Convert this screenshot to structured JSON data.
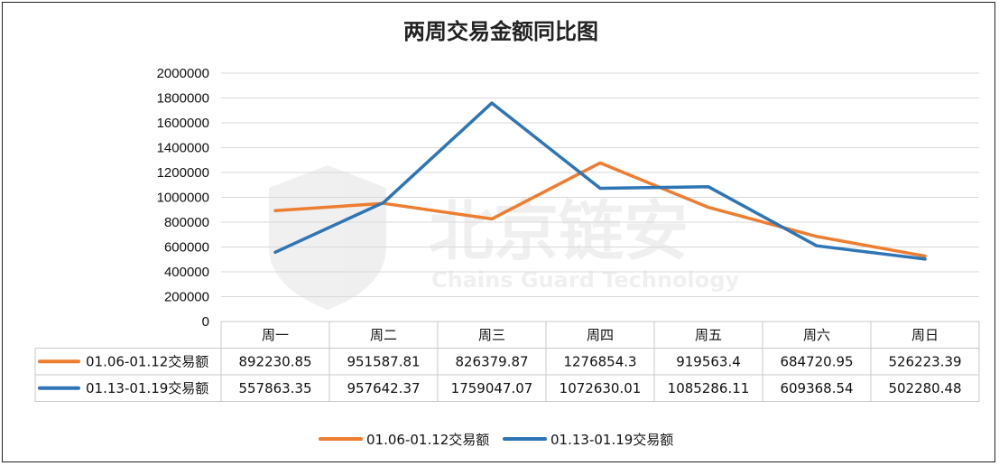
{
  "chart_data": {
    "type": "line",
    "title": "两周交易金额同比图",
    "categories": [
      "周一",
      "周二",
      "周三",
      "周四",
      "周五",
      "周六",
      "周日"
    ],
    "series": [
      {
        "name": "01.06-01.12交易额",
        "color": "#ED7D31",
        "values": [
          892230.85,
          951587.81,
          826379.87,
          1276854.3,
          919563.4,
          684720.95,
          526223.39
        ],
        "labels": [
          "892230.85",
          "951587.81",
          "826379.87",
          "1276854.3",
          "919563.4",
          "684720.95",
          "526223.39"
        ]
      },
      {
        "name": "01.13-01.19交易额",
        "color": "#2E75B6",
        "values": [
          557863.35,
          957642.37,
          1759047.07,
          1072630.01,
          1085286.11,
          609368.54,
          502280.48
        ],
        "labels": [
          "557863.35",
          "957642.37",
          "1759047.07",
          "1072630.01",
          "1085286.11",
          "609368.54",
          "502280.48"
        ]
      }
    ],
    "ylim": [
      0,
      2000000
    ],
    "yticks": [
      "0",
      "200000",
      "400000",
      "600000",
      "800000",
      "1000000",
      "1200000",
      "1400000",
      "1600000",
      "1800000",
      "2000000"
    ],
    "grid": true,
    "legend": "bottom",
    "data_table": true
  },
  "watermark": {
    "text": "北京链安",
    "subtext": "Chains Guard Technology",
    "icon": "shield-logo-icon"
  }
}
